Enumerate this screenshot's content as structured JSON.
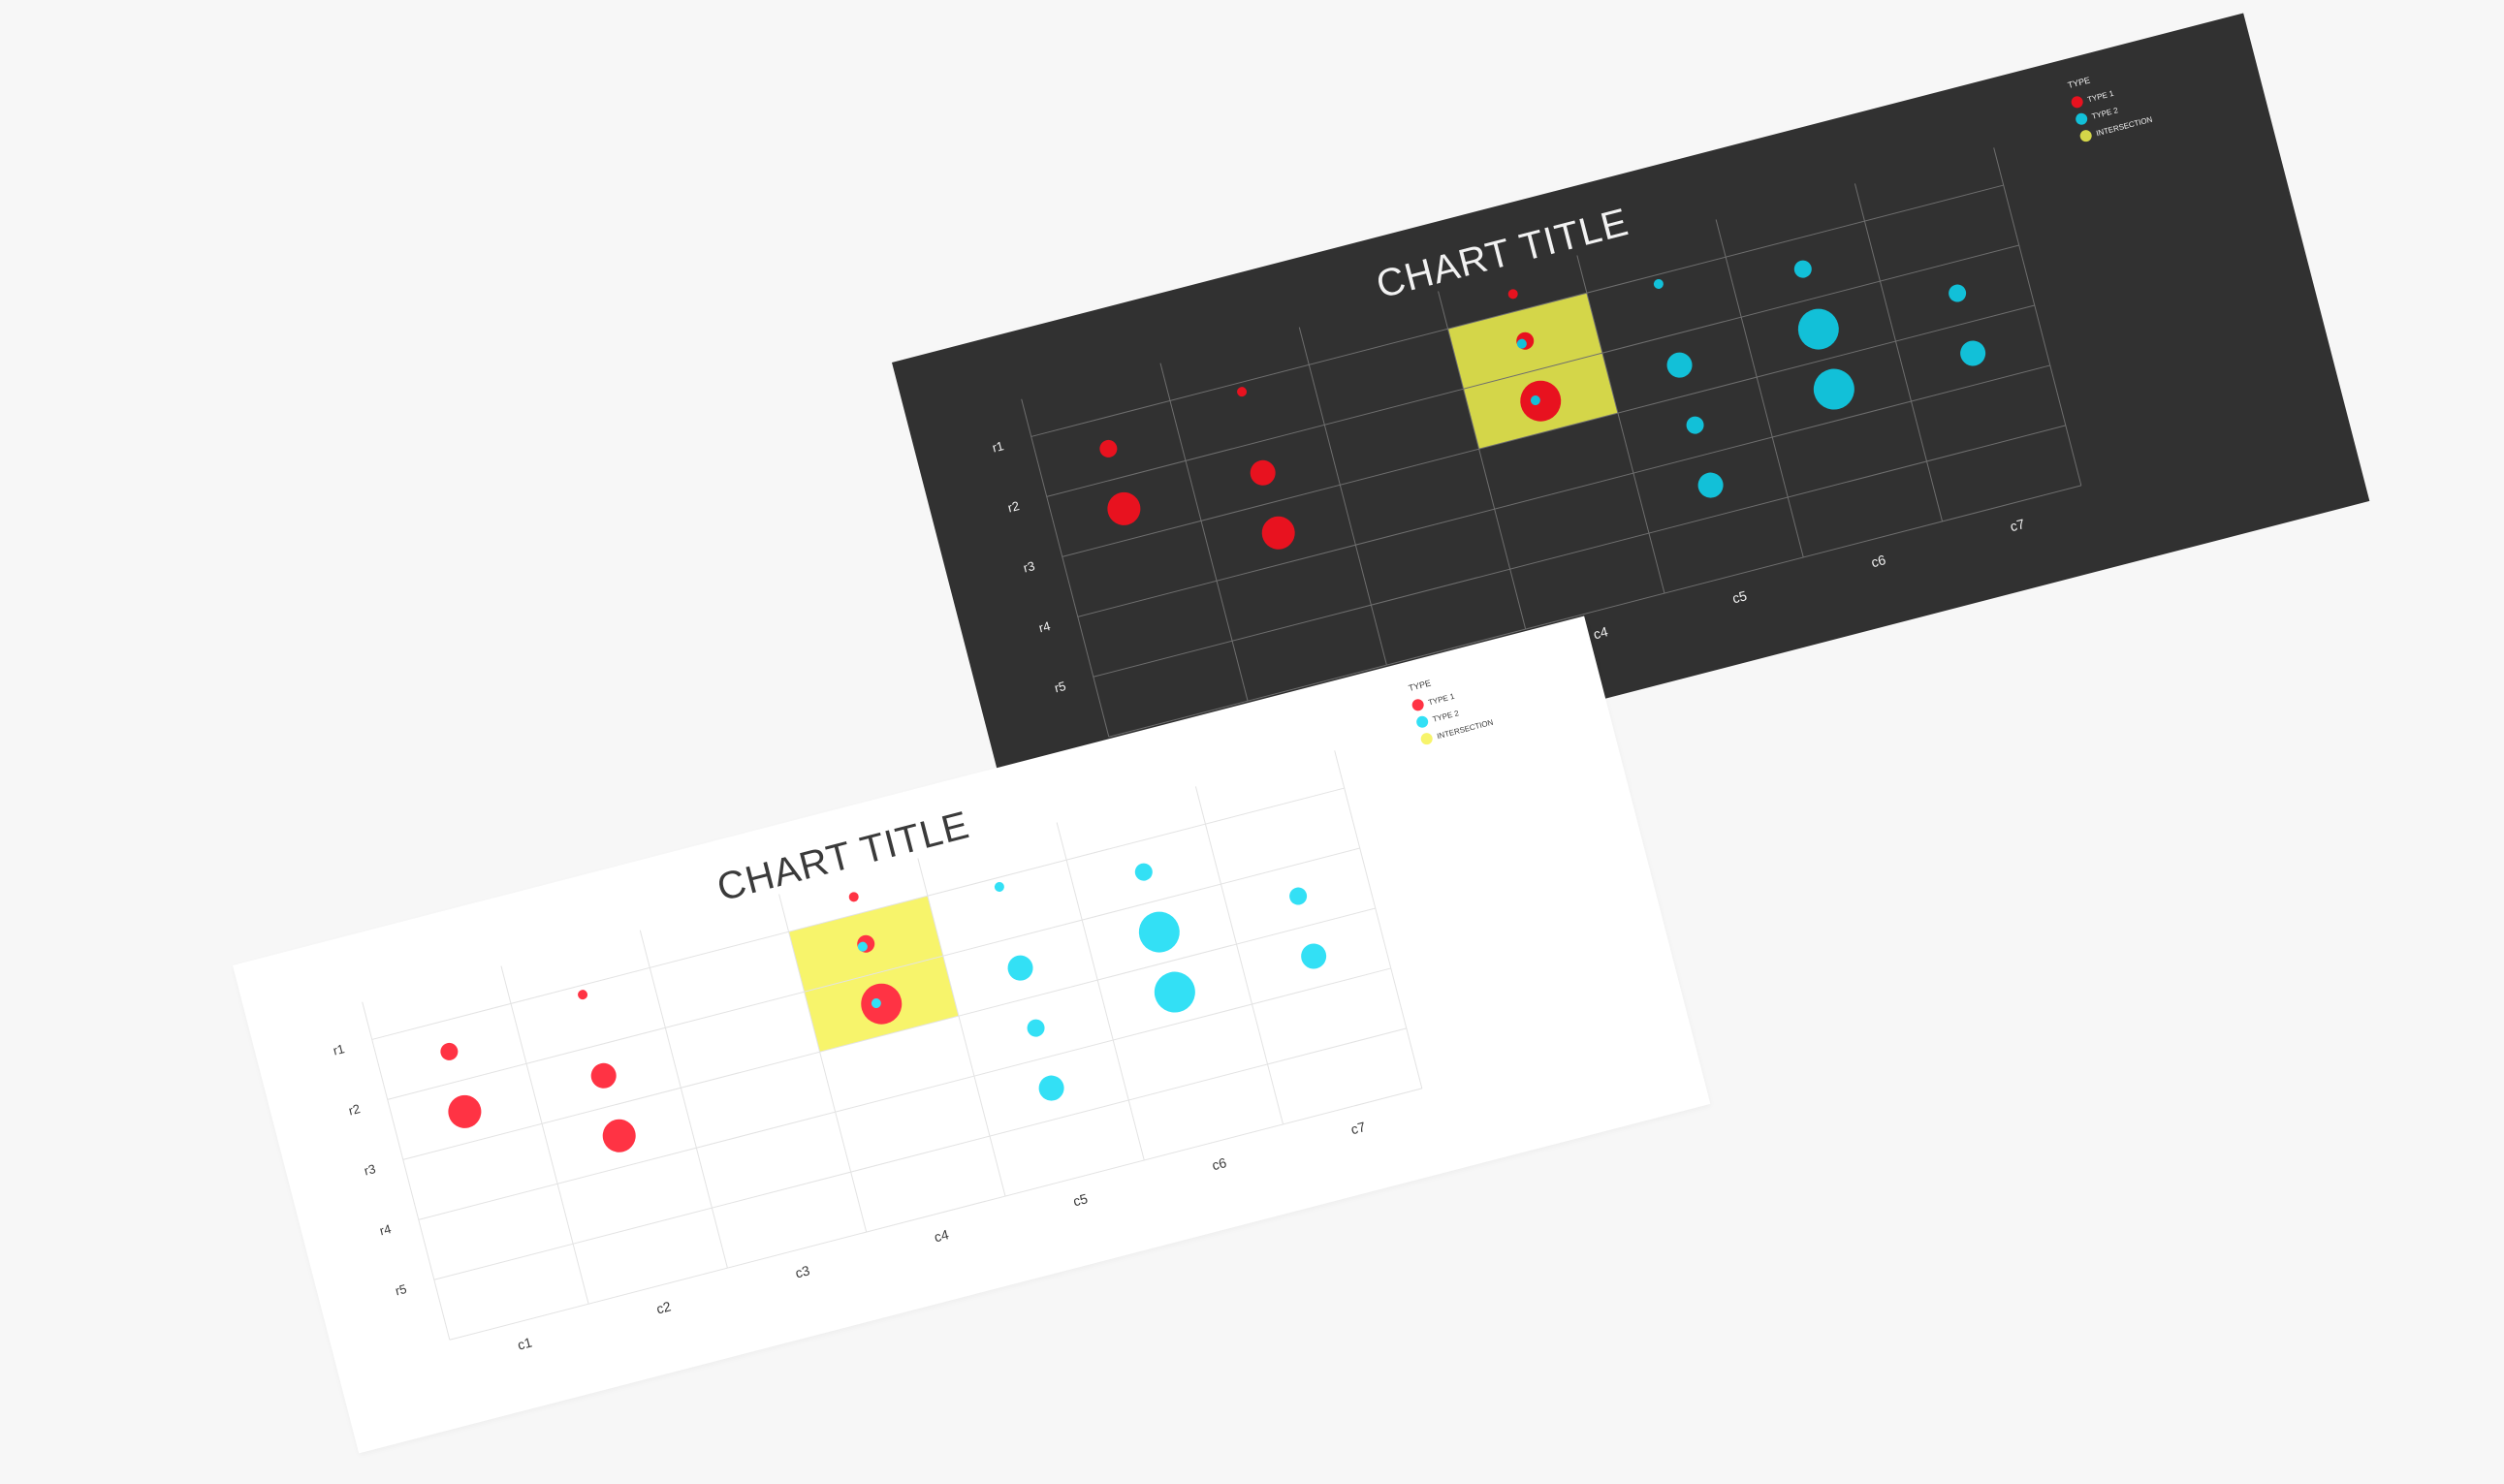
{
  "charts": [
    {
      "id": "light",
      "theme": {
        "background": "#ffffff",
        "grid": "#e3e3e3",
        "text": "#3a3a3a",
        "type1": "#ff3344",
        "type2": "#33e0f5",
        "intersection": "#f7f46b"
      }
    },
    {
      "id": "dark",
      "theme": {
        "background": "#313131",
        "grid": "#6e6e6e",
        "text": "#f2f2f2",
        "type1": "#e8121f",
        "type2": "#12c0d8",
        "intersection": "#d4d649"
      }
    }
  ],
  "chart_data": {
    "type": "bubble-matrix",
    "title": "CHART TITLE",
    "columns": [
      "c1",
      "c2",
      "c3",
      "c4",
      "c5",
      "c6",
      "c7"
    ],
    "rows": [
      "r1",
      "r2",
      "r3",
      "r4",
      "r5"
    ],
    "legend": {
      "title": "TYPE",
      "items": [
        {
          "key": "type1",
          "label": "TYPE 1"
        },
        {
          "key": "type2",
          "label": "TYPE 2"
        },
        {
          "key": "intersection",
          "label": "INTERSECTION"
        }
      ],
      "placement": "top-right"
    },
    "intersection_cells": [
      {
        "col": "c4",
        "rows": [
          "r1",
          "r2"
        ]
      }
    ],
    "points": [
      {
        "col": "c1",
        "row": "r1",
        "type": "type1",
        "size": 2
      },
      {
        "col": "c1",
        "row": "r2",
        "type": "type1",
        "size": 4
      },
      {
        "col": "c2",
        "row": "r1",
        "type": "type1",
        "size": 1
      },
      {
        "col": "c2",
        "row": "r2",
        "type": "type1",
        "size": 3
      },
      {
        "col": "c2",
        "row": "r3",
        "type": "type1",
        "size": 4
      },
      {
        "col": "c4",
        "row": "r1",
        "type": "type1",
        "size": 1
      },
      {
        "col": "c4",
        "row": "r1",
        "type": "type1",
        "size": 2
      },
      {
        "col": "c4",
        "row": "r1",
        "type": "type2",
        "size": 1
      },
      {
        "col": "c4",
        "row": "r2",
        "type": "type1",
        "size": 5
      },
      {
        "col": "c4",
        "row": "r2",
        "type": "type2",
        "size": 1
      },
      {
        "col": "c5",
        "row": "r1",
        "type": "type2",
        "size": 1
      },
      {
        "col": "c5",
        "row": "r2",
        "type": "type2",
        "size": 3
      },
      {
        "col": "c5",
        "row": "r3",
        "type": "type2",
        "size": 2
      },
      {
        "col": "c5",
        "row": "r4",
        "type": "type2",
        "size": 3
      },
      {
        "col": "c6",
        "row": "r1",
        "type": "type2",
        "size": 2
      },
      {
        "col": "c6",
        "row": "r2",
        "type": "type2",
        "size": 5
      },
      {
        "col": "c6",
        "row": "r3",
        "type": "type2",
        "size": 5
      },
      {
        "col": "c7",
        "row": "r2",
        "type": "type2",
        "size": 2
      },
      {
        "col": "c7",
        "row": "r3",
        "type": "type2",
        "size": 3
      }
    ]
  }
}
